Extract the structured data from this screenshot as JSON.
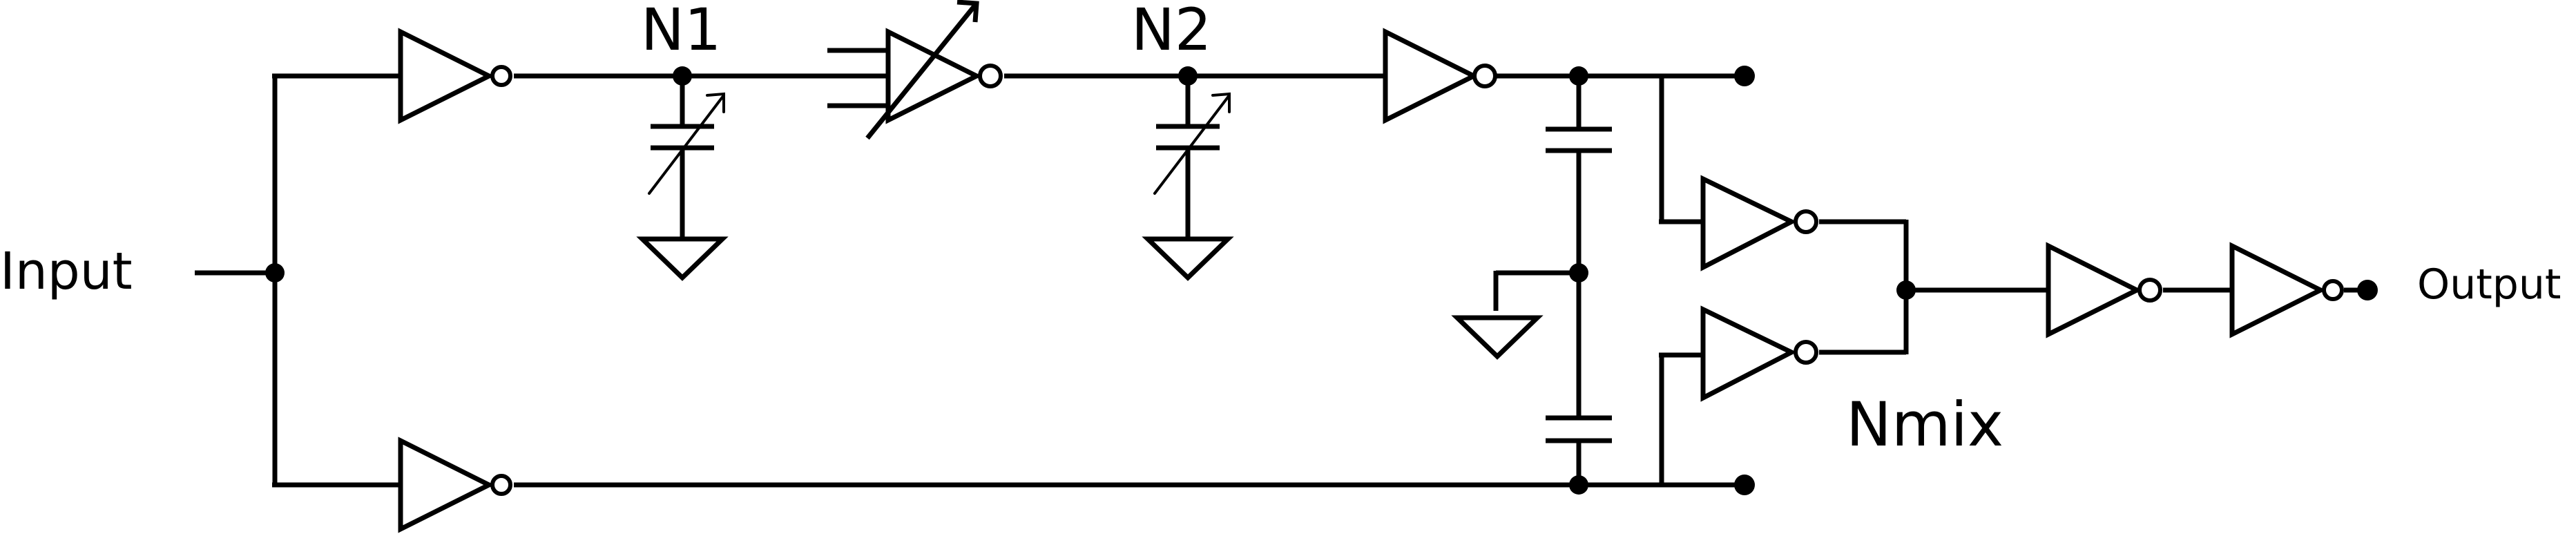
{
  "labels": {
    "input": "Input",
    "output": "Output",
    "n1": "N1",
    "n2": "N2",
    "nmix": "Nmix"
  }
}
